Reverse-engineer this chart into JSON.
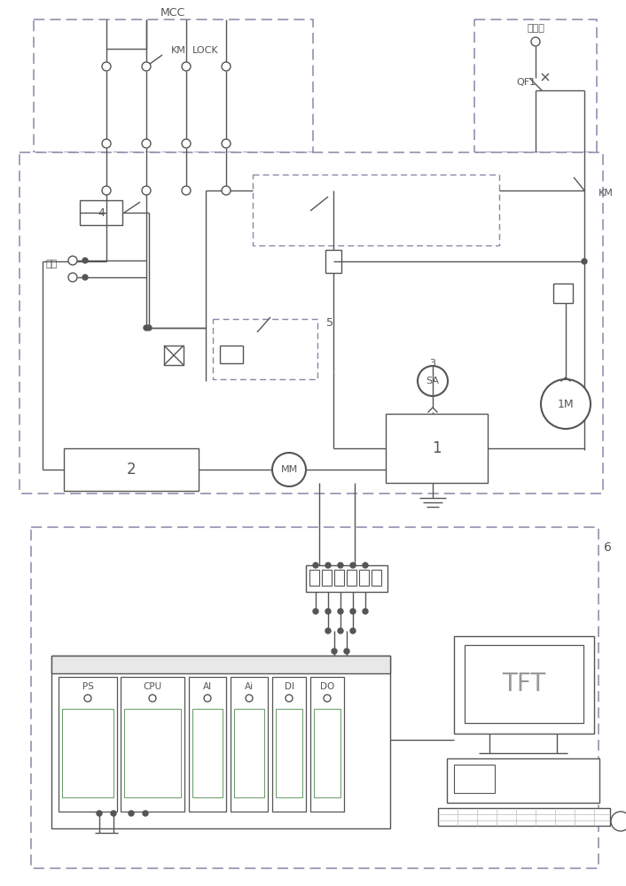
{
  "bg": "#ffffff",
  "lc": "#555555",
  "pc": "#8888aa",
  "label_mcc": "MCC",
  "label_6": "6",
  "label_zdy": "主电源",
  "label_nei": "内控",
  "label_km": "KM",
  "label_lock": "LOCK",
  "label_qf1": "QF1",
  "label_sa": "SA",
  "label_im": "1M",
  "label_mm": "MM",
  "label_tft": "TFT",
  "label_2": "2",
  "label_1": "1",
  "label_4": "4",
  "label_5": "5",
  "label_3": "3",
  "modules": [
    "PS",
    "CPU",
    "AI",
    "Ai",
    "DI",
    "DO"
  ]
}
